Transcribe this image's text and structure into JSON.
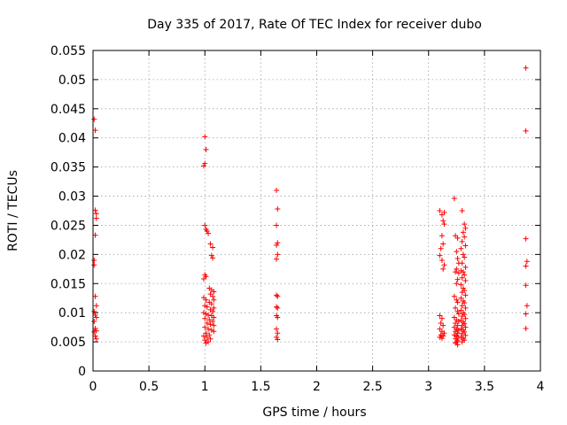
{
  "chart_data": {
    "type": "scatter",
    "title": "Day 335 of 2017, Rate Of TEC Index for receiver dubo",
    "xlabel": "GPS time / hours",
    "ylabel": "ROTI / TECUs",
    "xlim": [
      0,
      4
    ],
    "ylim": [
      0,
      0.055
    ],
    "x_ticks": [
      "0",
      "0.5",
      "1",
      "1.5",
      "2",
      "2.5",
      "3",
      "3.5",
      "4"
    ],
    "y_ticks": [
      "0",
      "0.005",
      "0.01",
      "0.015",
      "0.02",
      "0.025",
      "0.03",
      "0.035",
      "0.04",
      "0.045",
      "0.05",
      "0.055"
    ],
    "grid": true,
    "marker": "+",
    "color": "#ff0000",
    "series": [
      {
        "values": [
          [
            0.01,
            0.0432
          ],
          [
            0.02,
            0.0413
          ],
          [
            0.02,
            0.0276
          ],
          [
            0.03,
            0.027
          ],
          [
            0.03,
            0.0262
          ],
          [
            0.02,
            0.0233
          ],
          [
            0.01,
            0.019
          ],
          [
            0.01,
            0.0182
          ],
          [
            0.02,
            0.0128
          ],
          [
            0.03,
            0.0112
          ],
          [
            0.01,
            0.0102
          ],
          [
            0.02,
            0.0096
          ],
          [
            0.03,
            0.0092
          ],
          [
            0.01,
            0.0085
          ],
          [
            0.02,
            0.0073
          ],
          [
            0.03,
            0.0069
          ],
          [
            0.01,
            0.0067
          ],
          [
            0.02,
            0.006
          ],
          [
            0.03,
            0.0055
          ],
          [
            1.0,
            0.0402
          ],
          [
            1.01,
            0.038
          ],
          [
            1.0,
            0.0356
          ],
          [
            0.99,
            0.0352
          ],
          [
            1.0,
            0.025
          ],
          [
            1.01,
            0.0243
          ],
          [
            1.02,
            0.024
          ],
          [
            1.03,
            0.0236
          ],
          [
            1.05,
            0.0218
          ],
          [
            1.07,
            0.0212
          ],
          [
            1.06,
            0.0198
          ],
          [
            1.07,
            0.0194
          ],
          [
            1.0,
            0.0165
          ],
          [
            1.01,
            0.0162
          ],
          [
            0.99,
            0.0158
          ],
          [
            1.04,
            0.0142
          ],
          [
            1.06,
            0.0139
          ],
          [
            1.08,
            0.0136
          ],
          [
            1.05,
            0.0132
          ],
          [
            1.07,
            0.0128
          ],
          [
            0.99,
            0.0126
          ],
          [
            1.01,
            0.0122
          ],
          [
            1.08,
            0.0122
          ],
          [
            1.04,
            0.0118
          ],
          [
            1.06,
            0.0115
          ],
          [
            1.0,
            0.0112
          ],
          [
            1.02,
            0.011
          ],
          [
            1.08,
            0.0108
          ],
          [
            1.05,
            0.0105
          ],
          [
            1.07,
            0.0102
          ],
          [
            0.99,
            0.01
          ],
          [
            1.01,
            0.0098
          ],
          [
            1.03,
            0.0096
          ],
          [
            1.06,
            0.0095
          ],
          [
            1.08,
            0.0092
          ],
          [
            1.0,
            0.009
          ],
          [
            1.04,
            0.0088
          ],
          [
            1.07,
            0.0085
          ],
          [
            1.02,
            0.0082
          ],
          [
            1.05,
            0.008
          ],
          [
            1.08,
            0.0078
          ],
          [
            1.0,
            0.0075
          ],
          [
            1.03,
            0.0072
          ],
          [
            1.06,
            0.007
          ],
          [
            1.08,
            0.0068
          ],
          [
            1.01,
            0.0065
          ],
          [
            1.04,
            0.0062
          ],
          [
            0.99,
            0.006
          ],
          [
            1.02,
            0.0058
          ],
          [
            1.05,
            0.0055
          ],
          [
            1.0,
            0.0053
          ],
          [
            1.03,
            0.005
          ],
          [
            1.01,
            0.0048
          ],
          [
            1.64,
            0.031
          ],
          [
            1.65,
            0.0278
          ],
          [
            1.64,
            0.025
          ],
          [
            1.65,
            0.022
          ],
          [
            1.64,
            0.0216
          ],
          [
            1.65,
            0.02
          ],
          [
            1.64,
            0.0192
          ],
          [
            1.64,
            0.013
          ],
          [
            1.65,
            0.0128
          ],
          [
            1.64,
            0.011
          ],
          [
            1.65,
            0.0108
          ],
          [
            1.64,
            0.0095
          ],
          [
            1.65,
            0.0092
          ],
          [
            1.64,
            0.0072
          ],
          [
            1.65,
            0.0065
          ],
          [
            1.64,
            0.0058
          ],
          [
            1.65,
            0.0054
          ],
          [
            3.1,
            0.0275
          ],
          [
            3.12,
            0.0268
          ],
          [
            3.14,
            0.0272
          ],
          [
            3.13,
            0.0258
          ],
          [
            3.14,
            0.0252
          ],
          [
            3.12,
            0.0232
          ],
          [
            3.13,
            0.0218
          ],
          [
            3.11,
            0.021
          ],
          [
            3.1,
            0.0198
          ],
          [
            3.12,
            0.019
          ],
          [
            3.14,
            0.0182
          ],
          [
            3.13,
            0.0175
          ],
          [
            3.1,
            0.0095
          ],
          [
            3.12,
            0.009
          ],
          [
            3.11,
            0.0082
          ],
          [
            3.13,
            0.0078
          ],
          [
            3.1,
            0.0072
          ],
          [
            3.12,
            0.0068
          ],
          [
            3.14,
            0.0065
          ],
          [
            3.11,
            0.0062
          ],
          [
            3.13,
            0.006
          ],
          [
            3.1,
            0.0058
          ],
          [
            3.12,
            0.0056
          ],
          [
            3.23,
            0.0296
          ],
          [
            3.24,
            0.0232
          ],
          [
            3.26,
            0.0228
          ],
          [
            3.25,
            0.0205
          ],
          [
            3.26,
            0.0193
          ],
          [
            3.27,
            0.0185
          ],
          [
            3.25,
            0.0175
          ],
          [
            3.24,
            0.017
          ],
          [
            3.27,
            0.0168
          ],
          [
            3.26,
            0.0157
          ],
          [
            3.25,
            0.015
          ],
          [
            3.23,
            0.0128
          ],
          [
            3.25,
            0.0122
          ],
          [
            3.26,
            0.0118
          ],
          [
            3.24,
            0.0108
          ],
          [
            3.26,
            0.0102
          ],
          [
            3.27,
            0.0098
          ],
          [
            3.23,
            0.0092
          ],
          [
            3.25,
            0.0088
          ],
          [
            3.27,
            0.0085
          ],
          [
            3.24,
            0.0082
          ],
          [
            3.26,
            0.0078
          ],
          [
            3.23,
            0.0075
          ],
          [
            3.25,
            0.0072
          ],
          [
            3.27,
            0.007
          ],
          [
            3.24,
            0.0068
          ],
          [
            3.26,
            0.0065
          ],
          [
            3.23,
            0.0062
          ],
          [
            3.25,
            0.006
          ],
          [
            3.27,
            0.0058
          ],
          [
            3.24,
            0.0055
          ],
          [
            3.26,
            0.0052
          ],
          [
            3.25,
            0.005
          ],
          [
            3.24,
            0.0048
          ],
          [
            3.26,
            0.0045
          ],
          [
            3.3,
            0.0275
          ],
          [
            3.32,
            0.0252
          ],
          [
            3.33,
            0.0245
          ],
          [
            3.31,
            0.0238
          ],
          [
            3.32,
            0.023
          ],
          [
            3.3,
            0.0222
          ],
          [
            3.33,
            0.0215
          ],
          [
            3.29,
            0.021
          ],
          [
            3.31,
            0.02
          ],
          [
            3.32,
            0.0195
          ],
          [
            3.3,
            0.0185
          ],
          [
            3.33,
            0.0178
          ],
          [
            3.29,
            0.0172
          ],
          [
            3.31,
            0.017
          ],
          [
            3.32,
            0.0165
          ],
          [
            3.3,
            0.016
          ],
          [
            3.33,
            0.0155
          ],
          [
            3.29,
            0.0148
          ],
          [
            3.31,
            0.0142
          ],
          [
            3.32,
            0.0138
          ],
          [
            3.3,
            0.0135
          ],
          [
            3.33,
            0.013
          ],
          [
            3.29,
            0.0125
          ],
          [
            3.31,
            0.012
          ],
          [
            3.32,
            0.0117
          ],
          [
            3.3,
            0.0112
          ],
          [
            3.33,
            0.0108
          ],
          [
            3.29,
            0.0104
          ],
          [
            3.31,
            0.01
          ],
          [
            3.32,
            0.0097
          ],
          [
            3.3,
            0.0094
          ],
          [
            3.33,
            0.009
          ],
          [
            3.29,
            0.0087
          ],
          [
            3.31,
            0.0084
          ],
          [
            3.32,
            0.0081
          ],
          [
            3.3,
            0.0078
          ],
          [
            3.33,
            0.0075
          ],
          [
            3.29,
            0.0072
          ],
          [
            3.31,
            0.007
          ],
          [
            3.32,
            0.0067
          ],
          [
            3.3,
            0.0064
          ],
          [
            3.33,
            0.0061
          ],
          [
            3.29,
            0.0058
          ],
          [
            3.31,
            0.0056
          ],
          [
            3.32,
            0.0053
          ],
          [
            3.3,
            0.005
          ],
          [
            3.87,
            0.052
          ],
          [
            3.87,
            0.0412
          ],
          [
            3.87,
            0.0227
          ],
          [
            3.88,
            0.0188
          ],
          [
            3.87,
            0.018
          ],
          [
            3.87,
            0.0147
          ],
          [
            3.88,
            0.0112
          ],
          [
            3.87,
            0.0098
          ],
          [
            3.87,
            0.0073
          ]
        ]
      }
    ]
  }
}
